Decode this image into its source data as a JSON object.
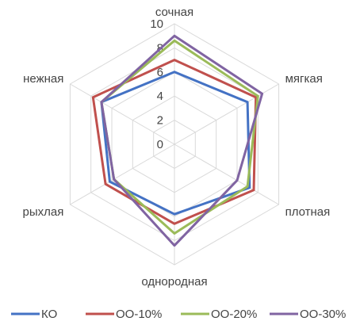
{
  "chart_data": {
    "type": "radar",
    "title": "",
    "axes": [
      "сочная",
      "мягкая",
      "плотная",
      "однородная",
      "рыхлая",
      "нежная"
    ],
    "rlim": [
      0,
      10
    ],
    "ticks": [
      {
        "value": 0,
        "label": "0"
      },
      {
        "value": 2,
        "label": "2"
      },
      {
        "value": 4,
        "label": "4"
      },
      {
        "value": 6,
        "label": "6"
      },
      {
        "value": 8,
        "label": "8"
      },
      {
        "value": 10,
        "label": "10"
      }
    ],
    "grid": true,
    "legend_position": "bottom",
    "series": [
      {
        "name": "КО",
        "color": "#4472C4",
        "values": [
          6.0,
          7.0,
          7.2,
          5.8,
          6.2,
          7.0
        ]
      },
      {
        "name": "ОО-10%",
        "color": "#C0504D",
        "values": [
          7.0,
          7.8,
          7.6,
          6.6,
          6.6,
          7.8
        ]
      },
      {
        "name": "ОО-20%",
        "color": "#9BBB59",
        "values": [
          8.6,
          8.0,
          7.0,
          7.4,
          5.8,
          7.0
        ]
      },
      {
        "name": "ОО-30%",
        "color": "#8064A2",
        "values": [
          9.0,
          8.4,
          6.0,
          8.4,
          5.8,
          7.0
        ]
      }
    ]
  }
}
